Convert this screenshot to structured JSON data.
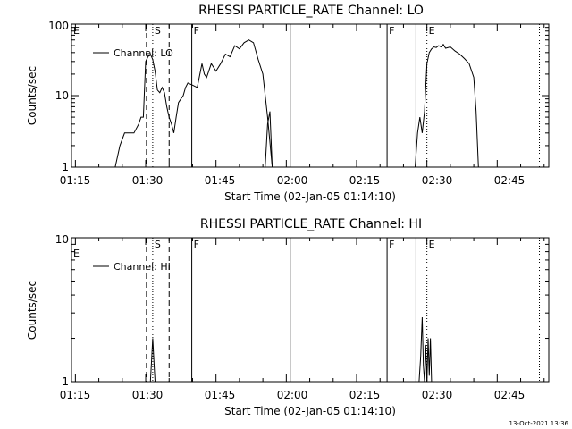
{
  "timestamp": "13-Oct-2021 13:36",
  "chart_data": [
    {
      "type": "line",
      "title": "RHESSI PARTICLE_RATE Channel: LO",
      "xlabel": "Start Time (02-Jan-05 01:14:10)",
      "ylabel": "Counts/sec",
      "yscale": "log",
      "ylim": [
        1,
        100
      ],
      "xlim": [
        "01:14:10",
        "02:56:00"
      ],
      "y_ticks": [
        "1",
        "10",
        "100"
      ],
      "x_ticks": [
        "01:15",
        "01:30",
        "01:45",
        "02:00",
        "02:15",
        "02:30",
        "02:45"
      ],
      "legend": "top-left",
      "series": [
        {
          "name": "Channel: LO",
          "x": [
            "01:23:30",
            "01:24:30",
            "01:25:30",
            "01:26:30",
            "01:27:30",
            "01:28:30",
            "01:29:00",
            "01:29:30",
            "01:30:00",
            "01:30:30",
            "01:31:00",
            "01:31:30",
            "01:32:00",
            "01:32:30",
            "01:33:00",
            "01:33:30",
            "01:34:00",
            "01:34:30",
            "01:35:00",
            "01:35:30",
            "01:36:00",
            "01:36:30",
            "01:37:00",
            "01:37:30",
            "01:38:00",
            "01:38:30",
            "01:39:00",
            "01:40:00",
            "01:41:00",
            "01:42:00",
            "01:42:30",
            "01:43:00",
            "01:44:00",
            "01:45:00",
            "01:46:00",
            "01:47:00",
            "01:48:00",
            "01:49:00",
            "01:50:00",
            "01:51:00",
            "01:52:00",
            "01:53:00",
            "01:54:00",
            "01:55:00",
            "01:56:00",
            "01:57:00"
          ],
          "y": [
            1,
            2,
            3,
            3,
            3,
            4,
            5,
            5,
            30,
            35,
            38,
            32,
            22,
            12,
            11,
            13,
            11,
            7,
            5,
            4,
            3,
            5,
            8,
            9,
            10,
            13,
            15,
            14,
            13,
            28,
            20,
            18,
            28,
            22,
            28,
            38,
            35,
            50,
            45,
            55,
            60,
            55,
            32,
            20,
            5,
            1
          ]
        },
        {
          "name": "Channel: LO",
          "x": [
            "01:55:30",
            "01:56:00",
            "01:56:30",
            "01:57:00"
          ],
          "y": [
            1,
            4,
            6,
            1
          ]
        },
        {
          "name": "Channel: LO",
          "x": [
            "02:27:30",
            "02:28:00",
            "02:28:30",
            "02:29:00",
            "02:29:30",
            "02:30:00",
            "02:30:30",
            "02:31:00",
            "02:31:30",
            "02:32:00",
            "02:32:30",
            "02:33:00",
            "02:33:30",
            "02:34:00",
            "02:35:00",
            "02:36:00",
            "02:37:00",
            "02:38:00",
            "02:39:00",
            "02:40:00",
            "02:40:30",
            "02:41:00"
          ],
          "y": [
            1,
            3,
            5,
            3,
            6,
            28,
            40,
            45,
            48,
            47,
            50,
            48,
            52,
            46,
            48,
            42,
            38,
            33,
            28,
            18,
            6,
            1
          ]
        }
      ],
      "markers": [
        {
          "time": "01:30:10",
          "style": "dashed",
          "label": ""
        },
        {
          "time": "01:31:30",
          "style": "dotted",
          "label": "S"
        },
        {
          "time": "01:35:00",
          "style": "dashed",
          "label": ""
        },
        {
          "time": "01:39:50",
          "style": "solid",
          "label": "F"
        },
        {
          "time": "02:00:50",
          "style": "solid",
          "label": ""
        },
        {
          "time": "02:21:30",
          "style": "solid",
          "label": "F"
        },
        {
          "time": "02:27:40",
          "style": "solid",
          "label": ""
        },
        {
          "time": "02:30:00",
          "style": "dotted",
          "label": "E"
        },
        {
          "time": "02:54:00",
          "style": "dotted",
          "label": ""
        }
      ],
      "edge_label": "E"
    },
    {
      "type": "line",
      "title": "RHESSI PARTICLE_RATE Channel: HI",
      "xlabel": "Start Time (02-Jan-05 01:14:10)",
      "ylabel": "Counts/sec",
      "yscale": "log",
      "ylim": [
        1,
        10
      ],
      "xlim": [
        "01:14:10",
        "02:56:00"
      ],
      "y_ticks": [
        "1",
        "10"
      ],
      "x_ticks": [
        "01:15",
        "01:30",
        "01:45",
        "02:00",
        "02:15",
        "02:30",
        "02:45"
      ],
      "legend": "top-left",
      "series": [
        {
          "name": "Channel: HI",
          "x": [
            "01:31:00",
            "01:31:15",
            "01:31:30",
            "01:31:45",
            "01:32:00"
          ],
          "y": [
            1,
            1.4,
            2,
            1.4,
            1
          ]
        },
        {
          "name": "Channel: HI",
          "x": [
            "02:28:20",
            "02:28:40",
            "02:29:00",
            "02:29:15",
            "02:29:30",
            "02:29:45",
            "02:30:00",
            "02:30:15",
            "02:30:30",
            "02:30:45",
            "02:31:00"
          ],
          "y": [
            1,
            1.5,
            2.8,
            1.3,
            1,
            1.8,
            1,
            2.0,
            1.1,
            2.0,
            1
          ]
        }
      ],
      "markers": [
        {
          "time": "01:30:10",
          "style": "dashed",
          "label": ""
        },
        {
          "time": "01:31:30",
          "style": "dotted",
          "label": "S"
        },
        {
          "time": "01:35:00",
          "style": "dashed",
          "label": ""
        },
        {
          "time": "01:39:50",
          "style": "solid",
          "label": "F"
        },
        {
          "time": "02:00:50",
          "style": "solid",
          "label": ""
        },
        {
          "time": "02:21:30",
          "style": "solid",
          "label": "F"
        },
        {
          "time": "02:27:40",
          "style": "solid",
          "label": ""
        },
        {
          "time": "02:30:00",
          "style": "dotted",
          "label": "E"
        },
        {
          "time": "02:54:00",
          "style": "dotted",
          "label": ""
        }
      ],
      "edge_label": "E"
    }
  ]
}
